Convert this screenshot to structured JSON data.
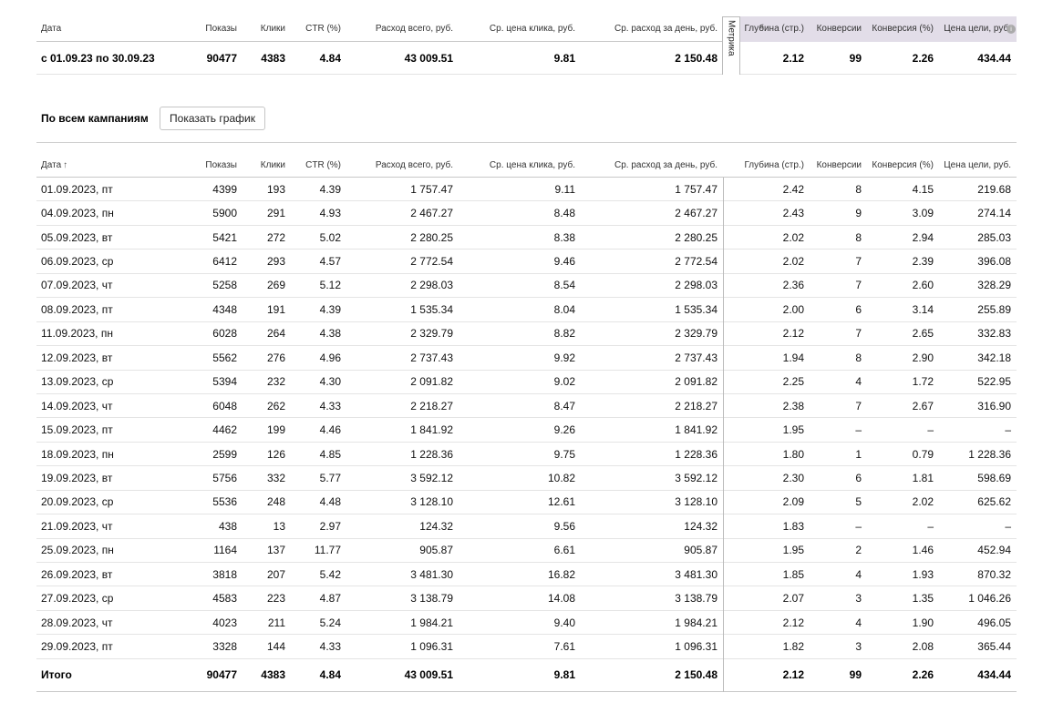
{
  "columns": {
    "date": "Дата",
    "shows": "Показы",
    "clicks": "Клики",
    "ctr": "CTR (%)",
    "spend": "Расход всего, руб.",
    "cpc": "Ср. цена клика, руб.",
    "daily": "Ср. расход за день, руб.",
    "depth": "Глубина (стр.)",
    "conversions": "Конверсии",
    "conv_rate": "Конверсия (%)",
    "goal_price": "Цена цели, руб."
  },
  "metrika_tab": {
    "label": "Метрика",
    "chevron": "»"
  },
  "info_icon": "i",
  "summary": {
    "date": "с 01.09.23 по 30.09.23",
    "shows": "90477",
    "clicks": "4383",
    "ctr": "4.84",
    "spend": "43 009.51",
    "cpc": "9.81",
    "daily": "2 150.48",
    "depth": "2.12",
    "conversions": "99",
    "conv_rate": "2.26",
    "goal_price": "434.44"
  },
  "campaigns": {
    "caption": "По всем кампаниям",
    "show_chart_button": "Показать график"
  },
  "sort_arrow": "↑",
  "rows": [
    {
      "date": "01.09.2023, пт",
      "shows": "4399",
      "clicks": "193",
      "ctr": "4.39",
      "spend": "1 757.47",
      "cpc": "9.11",
      "daily": "1 757.47",
      "depth": "2.42",
      "conversions": "8",
      "conv_rate": "4.15",
      "goal_price": "219.68"
    },
    {
      "date": "04.09.2023, пн",
      "shows": "5900",
      "clicks": "291",
      "ctr": "4.93",
      "spend": "2 467.27",
      "cpc": "8.48",
      "daily": "2 467.27",
      "depth": "2.43",
      "conversions": "9",
      "conv_rate": "3.09",
      "goal_price": "274.14"
    },
    {
      "date": "05.09.2023, вт",
      "shows": "5421",
      "clicks": "272",
      "ctr": "5.02",
      "spend": "2 280.25",
      "cpc": "8.38",
      "daily": "2 280.25",
      "depth": "2.02",
      "conversions": "8",
      "conv_rate": "2.94",
      "goal_price": "285.03"
    },
    {
      "date": "06.09.2023, ср",
      "shows": "6412",
      "clicks": "293",
      "ctr": "4.57",
      "spend": "2 772.54",
      "cpc": "9.46",
      "daily": "2 772.54",
      "depth": "2.02",
      "conversions": "7",
      "conv_rate": "2.39",
      "goal_price": "396.08"
    },
    {
      "date": "07.09.2023, чт",
      "shows": "5258",
      "clicks": "269",
      "ctr": "5.12",
      "spend": "2 298.03",
      "cpc": "8.54",
      "daily": "2 298.03",
      "depth": "2.36",
      "conversions": "7",
      "conv_rate": "2.60",
      "goal_price": "328.29"
    },
    {
      "date": "08.09.2023, пт",
      "shows": "4348",
      "clicks": "191",
      "ctr": "4.39",
      "spend": "1 535.34",
      "cpc": "8.04",
      "daily": "1 535.34",
      "depth": "2.00",
      "conversions": "6",
      "conv_rate": "3.14",
      "goal_price": "255.89"
    },
    {
      "date": "11.09.2023, пн",
      "shows": "6028",
      "clicks": "264",
      "ctr": "4.38",
      "spend": "2 329.79",
      "cpc": "8.82",
      "daily": "2 329.79",
      "depth": "2.12",
      "conversions": "7",
      "conv_rate": "2.65",
      "goal_price": "332.83"
    },
    {
      "date": "12.09.2023, вт",
      "shows": "5562",
      "clicks": "276",
      "ctr": "4.96",
      "spend": "2 737.43",
      "cpc": "9.92",
      "daily": "2 737.43",
      "depth": "1.94",
      "conversions": "8",
      "conv_rate": "2.90",
      "goal_price": "342.18"
    },
    {
      "date": "13.09.2023, ср",
      "shows": "5394",
      "clicks": "232",
      "ctr": "4.30",
      "spend": "2 091.82",
      "cpc": "9.02",
      "daily": "2 091.82",
      "depth": "2.25",
      "conversions": "4",
      "conv_rate": "1.72",
      "goal_price": "522.95"
    },
    {
      "date": "14.09.2023, чт",
      "shows": "6048",
      "clicks": "262",
      "ctr": "4.33",
      "spend": "2 218.27",
      "cpc": "8.47",
      "daily": "2 218.27",
      "depth": "2.38",
      "conversions": "7",
      "conv_rate": "2.67",
      "goal_price": "316.90"
    },
    {
      "date": "15.09.2023, пт",
      "shows": "4462",
      "clicks": "199",
      "ctr": "4.46",
      "spend": "1 841.92",
      "cpc": "9.26",
      "daily": "1 841.92",
      "depth": "1.95",
      "conversions": "–",
      "conv_rate": "–",
      "goal_price": "–"
    },
    {
      "date": "18.09.2023, пн",
      "shows": "2599",
      "clicks": "126",
      "ctr": "4.85",
      "spend": "1 228.36",
      "cpc": "9.75",
      "daily": "1 228.36",
      "depth": "1.80",
      "conversions": "1",
      "conv_rate": "0.79",
      "goal_price": "1 228.36"
    },
    {
      "date": "19.09.2023, вт",
      "shows": "5756",
      "clicks": "332",
      "ctr": "5.77",
      "spend": "3 592.12",
      "cpc": "10.82",
      "daily": "3 592.12",
      "depth": "2.30",
      "conversions": "6",
      "conv_rate": "1.81",
      "goal_price": "598.69"
    },
    {
      "date": "20.09.2023, ср",
      "shows": "5536",
      "clicks": "248",
      "ctr": "4.48",
      "spend": "3 128.10",
      "cpc": "12.61",
      "daily": "3 128.10",
      "depth": "2.09",
      "conversions": "5",
      "conv_rate": "2.02",
      "goal_price": "625.62"
    },
    {
      "date": "21.09.2023, чт",
      "shows": "438",
      "clicks": "13",
      "ctr": "2.97",
      "spend": "124.32",
      "cpc": "9.56",
      "daily": "124.32",
      "depth": "1.83",
      "conversions": "–",
      "conv_rate": "–",
      "goal_price": "–"
    },
    {
      "date": "25.09.2023, пн",
      "shows": "1164",
      "clicks": "137",
      "ctr": "11.77",
      "spend": "905.87",
      "cpc": "6.61",
      "daily": "905.87",
      "depth": "1.95",
      "conversions": "2",
      "conv_rate": "1.46",
      "goal_price": "452.94"
    },
    {
      "date": "26.09.2023, вт",
      "shows": "3818",
      "clicks": "207",
      "ctr": "5.42",
      "spend": "3 481.30",
      "cpc": "16.82",
      "daily": "3 481.30",
      "depth": "1.85",
      "conversions": "4",
      "conv_rate": "1.93",
      "goal_price": "870.32"
    },
    {
      "date": "27.09.2023, ср",
      "shows": "4583",
      "clicks": "223",
      "ctr": "4.87",
      "spend": "3 138.79",
      "cpc": "14.08",
      "daily": "3 138.79",
      "depth": "2.07",
      "conversions": "3",
      "conv_rate": "1.35",
      "goal_price": "1 046.26"
    },
    {
      "date": "28.09.2023, чт",
      "shows": "4023",
      "clicks": "211",
      "ctr": "5.24",
      "spend": "1 984.21",
      "cpc": "9.40",
      "daily": "1 984.21",
      "depth": "2.12",
      "conversions": "4",
      "conv_rate": "1.90",
      "goal_price": "496.05"
    },
    {
      "date": "29.09.2023, пт",
      "shows": "3328",
      "clicks": "144",
      "ctr": "4.33",
      "spend": "1 096.31",
      "cpc": "7.61",
      "daily": "1 096.31",
      "depth": "1.82",
      "conversions": "3",
      "conv_rate": "2.08",
      "goal_price": "365.44"
    }
  ],
  "total": {
    "label": "Итого",
    "shows": "90477",
    "clicks": "4383",
    "ctr": "4.84",
    "spend": "43 009.51",
    "cpc": "9.81",
    "daily": "2 150.48",
    "depth": "2.12",
    "conversions": "99",
    "conv_rate": "2.26",
    "goal_price": "434.44"
  }
}
